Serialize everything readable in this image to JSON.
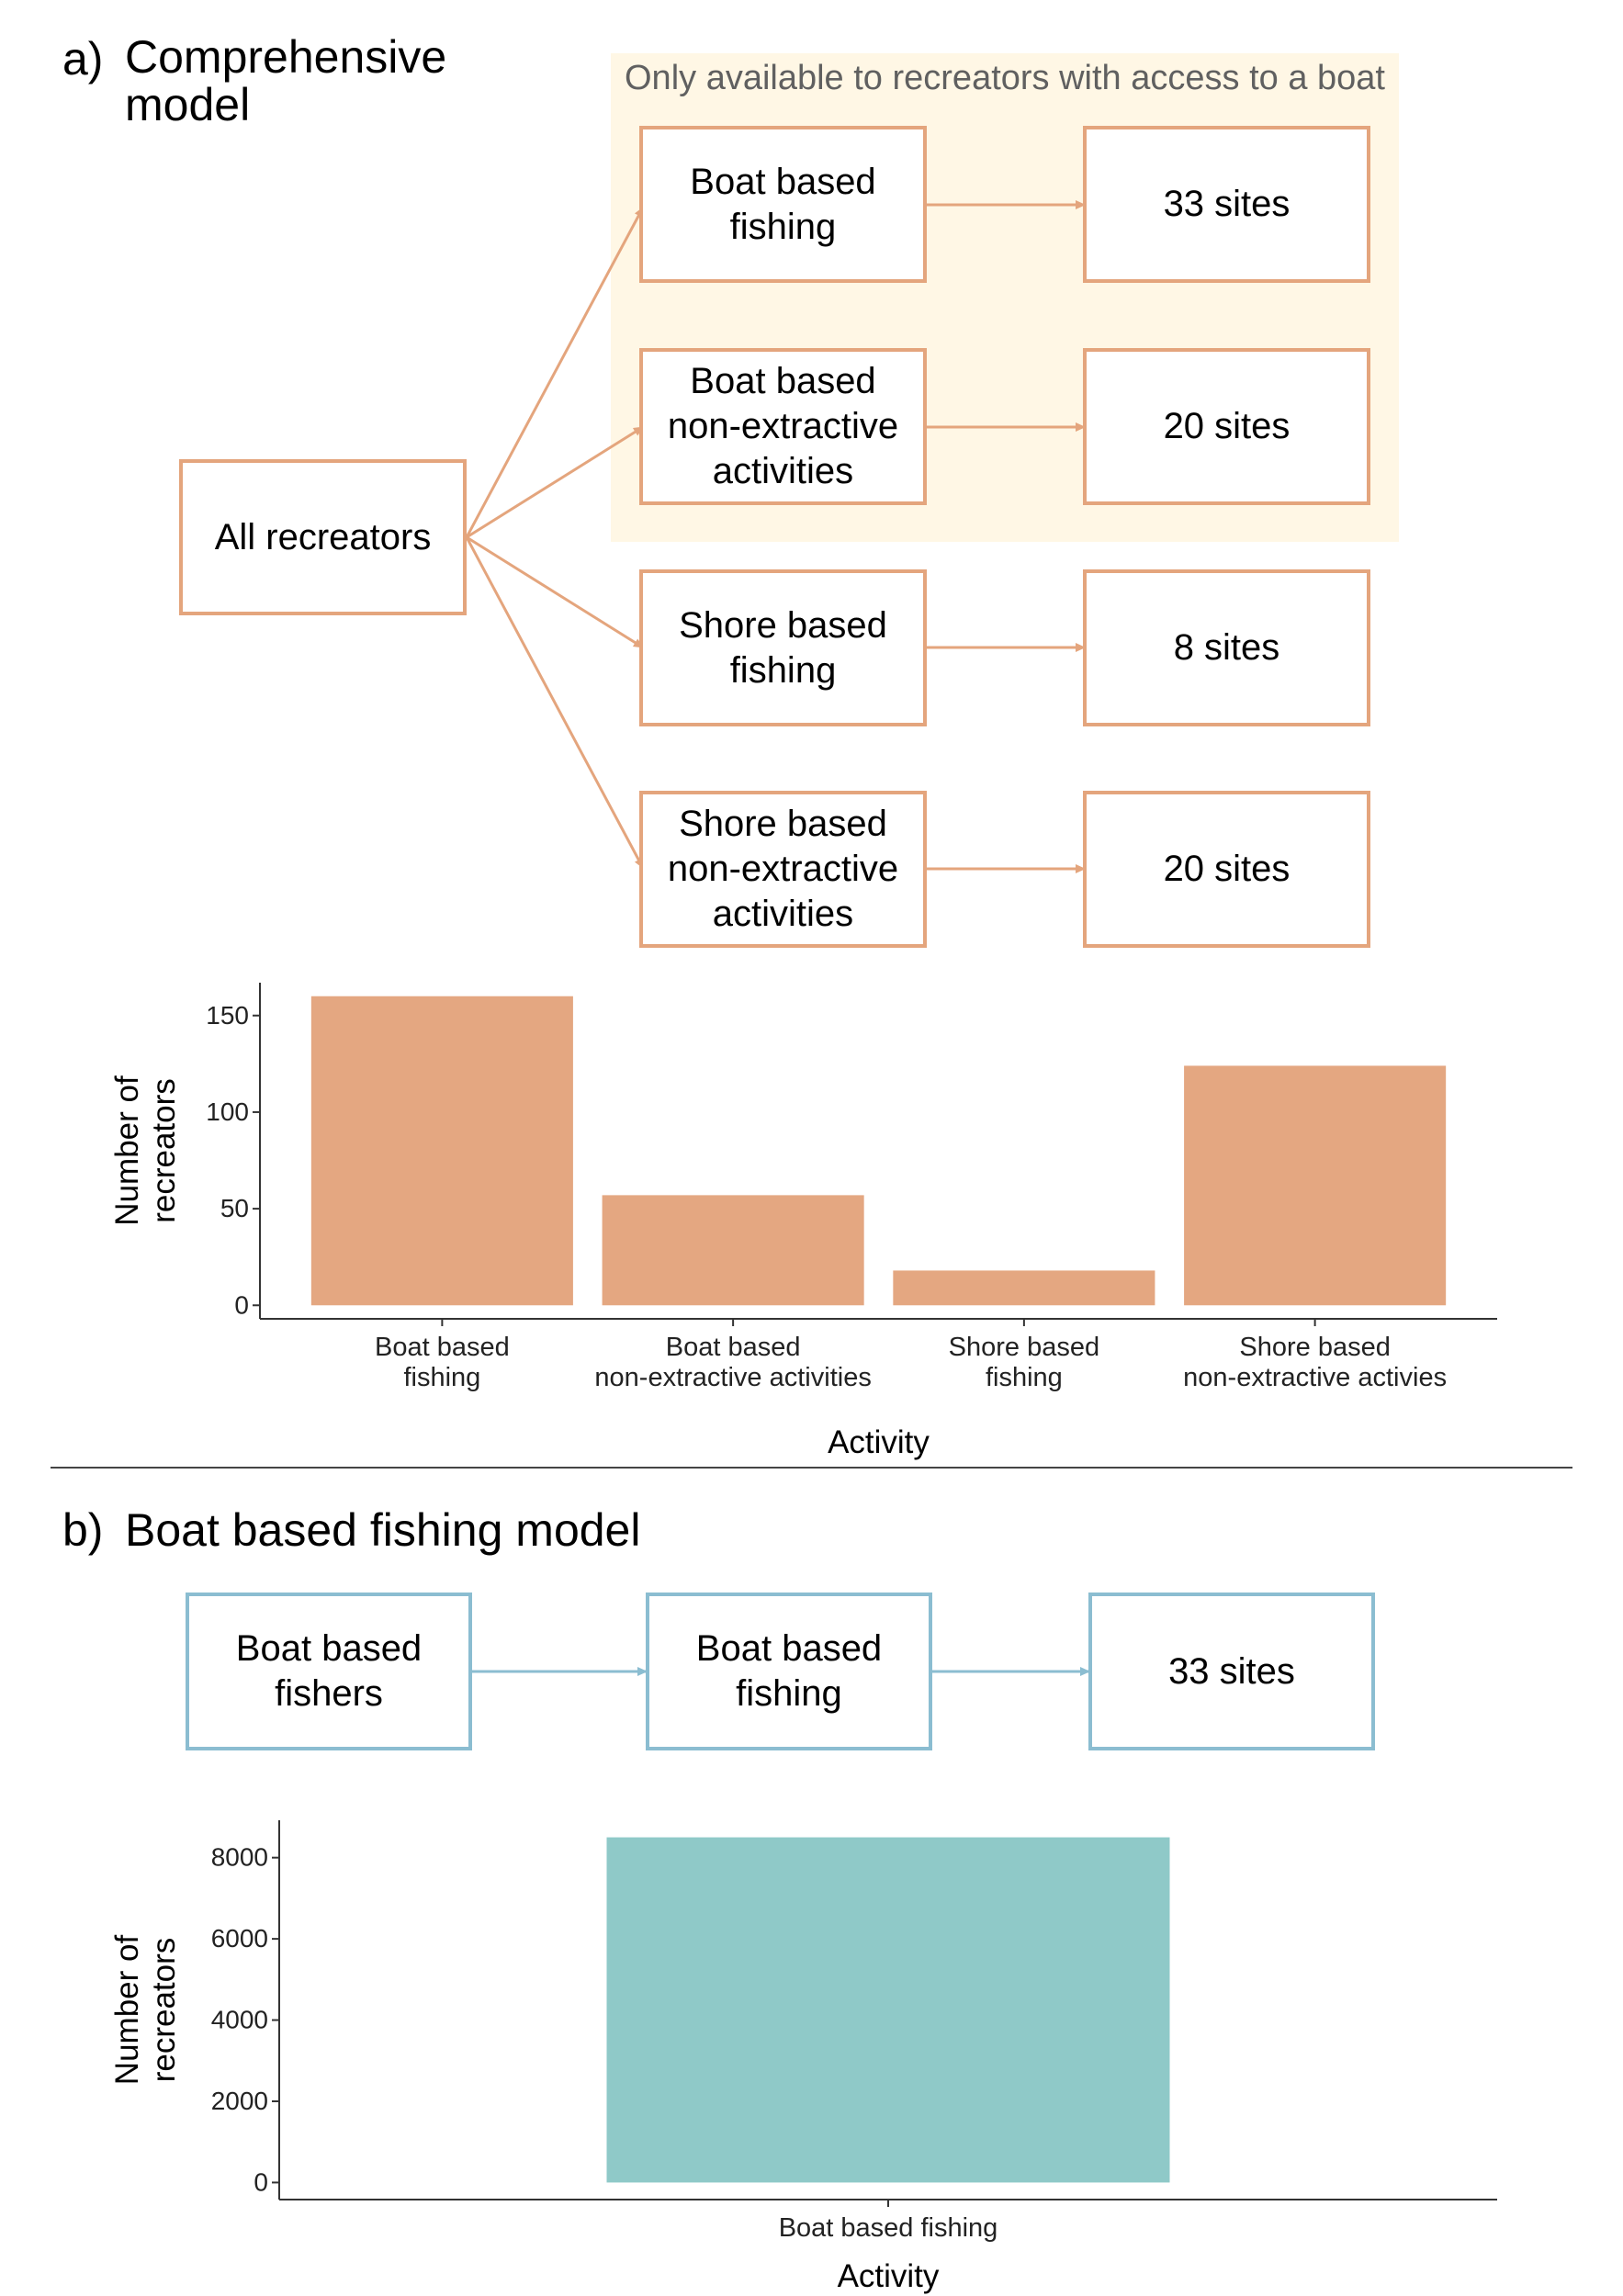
{
  "panel_a": {
    "letter": "a)",
    "title": "Comprehensive\nmodel",
    "boat_region_label": "Only available to recreators with access to a boat",
    "source_node": "All recreators",
    "activity_nodes": [
      "Boat based\nfishing",
      "Boat based\nnon-extractive\nactivities",
      "Shore based\nfishing",
      "Shore based\nnon-extractive\nactivities"
    ],
    "site_nodes": [
      "33 sites",
      "20 sites",
      "8 sites",
      "20 sites"
    ],
    "colors": {
      "border": "#e4a57d",
      "bar": "#e4a781",
      "highlight": "#fff7e5"
    }
  },
  "panel_b": {
    "letter": "b)",
    "title": "Boat based fishing model",
    "nodes": [
      "Boat based\nfishers",
      "Boat based\nfishing",
      "33 sites"
    ],
    "colors": {
      "border": "#8bbdd1",
      "bar": "#8fc9c8"
    }
  },
  "chart_data": [
    {
      "type": "bar",
      "categories": [
        "Boat based\nfishing",
        "Boat based\nnon-extractive activities",
        "Shore based\nfishing",
        "Shore based\nnon-extractive activies"
      ],
      "values": [
        160,
        57,
        18,
        124
      ],
      "xlabel": "Activity",
      "ylabel": "Number of\nrecreators",
      "ylim": [
        -7,
        167
      ],
      "yticks": [
        0,
        50,
        100,
        150
      ],
      "grid": false,
      "color": "#e4a781"
    },
    {
      "type": "bar",
      "categories": [
        "Boat based fishing"
      ],
      "values": [
        8500
      ],
      "xlabel": "Activity",
      "ylabel": "Number of\nrecreators",
      "ylim": [
        -420,
        8920
      ],
      "yticks": [
        0,
        2000,
        4000,
        6000,
        8000
      ],
      "grid": false,
      "color": "#8fc9c8"
    }
  ]
}
